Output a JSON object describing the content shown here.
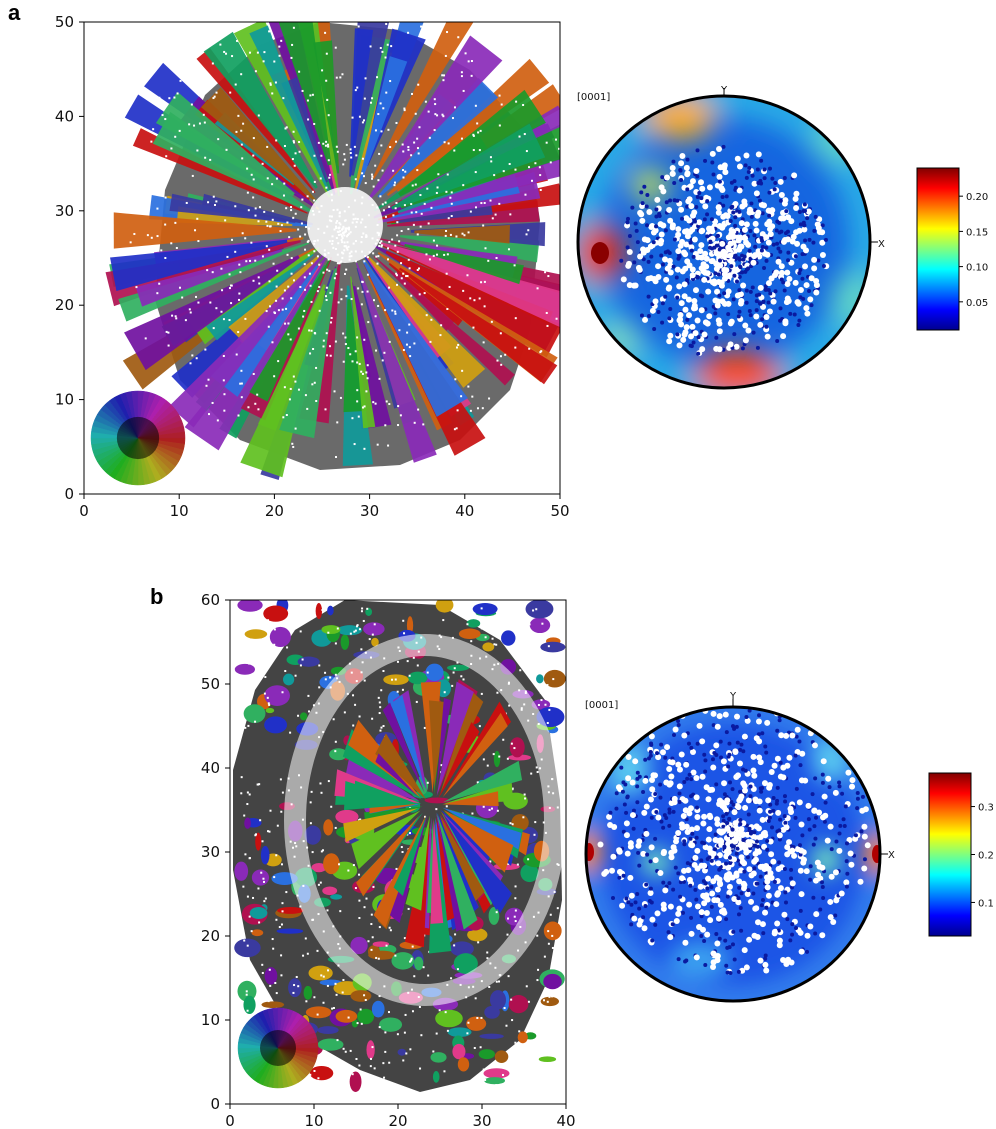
{
  "figure": {
    "panels": [
      {
        "letter": "a",
        "map": {
          "x_ticks": [
            "0",
            "10",
            "20",
            "30",
            "40",
            "50"
          ],
          "y_ticks": [
            "0",
            "10",
            "20",
            "30",
            "40",
            "50"
          ],
          "xlim": [
            0,
            50
          ],
          "ylim": [
            0,
            50
          ]
        },
        "pole_figure": {
          "title": "[0001]",
          "axis_y": "Y",
          "axis_x": "X",
          "colorbar_ticks": [
            "0.05",
            "0.10",
            "0.15",
            "0.20"
          ]
        }
      },
      {
        "letter": "b",
        "map": {
          "x_ticks": [
            "0",
            "10",
            "20",
            "30",
            "40"
          ],
          "y_ticks": [
            "0",
            "10",
            "20",
            "30",
            "40",
            "50",
            "60"
          ],
          "xlim": [
            0,
            40
          ],
          "ylim": [
            0,
            60
          ]
        },
        "pole_figure": {
          "title": "[0001]",
          "axis_y": "Y",
          "axis_x": "X",
          "colorbar_ticks": [
            "0.1",
            "0.2",
            "0.3"
          ]
        }
      }
    ]
  },
  "chart_data": [
    {
      "type": "heatmap",
      "panel": "a",
      "kind": "orientation map",
      "xlim": [
        0,
        50
      ],
      "ylim": [
        0,
        50
      ],
      "x_ticks": [
        0,
        10,
        20,
        30,
        40,
        50
      ],
      "y_ticks": [
        0,
        10,
        20,
        30,
        40,
        50
      ],
      "grid": false,
      "legend": "color wheel key, bottom-left"
    },
    {
      "type": "heatmap",
      "panel": "a",
      "kind": "pole figure",
      "title": "[0001]",
      "colorbar": {
        "min": 0.01,
        "max": 0.24,
        "ticks": [
          0.05,
          0.1,
          0.15,
          0.2
        ],
        "colormap": "jet"
      }
    },
    {
      "type": "heatmap",
      "panel": "b",
      "kind": "orientation map",
      "xlim": [
        0,
        40
      ],
      "ylim": [
        0,
        60
      ],
      "x_ticks": [
        0,
        10,
        20,
        30,
        40
      ],
      "y_ticks": [
        0,
        10,
        20,
        30,
        40,
        50,
        60
      ],
      "grid": false,
      "legend": "color wheel key, bottom-left"
    },
    {
      "type": "heatmap",
      "panel": "b",
      "kind": "pole figure",
      "title": "[0001]",
      "colorbar": {
        "min": 0.03,
        "max": 0.37,
        "ticks": [
          0.1,
          0.2,
          0.3
        ],
        "colormap": "jet"
      }
    }
  ]
}
